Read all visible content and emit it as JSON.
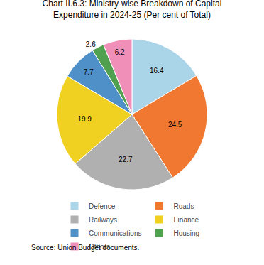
{
  "chart_data": {
    "type": "pie",
    "title": "Chart II.6.3: Ministry-wise Breakdown of Capital\nExpenditure in 2024-25 (Per cent of Total)",
    "categories": [
      "Defence",
      "Roads",
      "Railways",
      "Finance",
      "Communications",
      "Housing",
      "Others"
    ],
    "values": [
      16.4,
      24.5,
      22.7,
      19.9,
      7.7,
      2.6,
      6.2
    ],
    "colors": [
      "#aad4e8",
      "#f07830",
      "#b0b0b0",
      "#f0d020",
      "#5090c8",
      "#50a050",
      "#f090b8"
    ],
    "data_labels": true,
    "legend": "bottom",
    "annotations": [
      "Source: Union Budget documents."
    ]
  }
}
